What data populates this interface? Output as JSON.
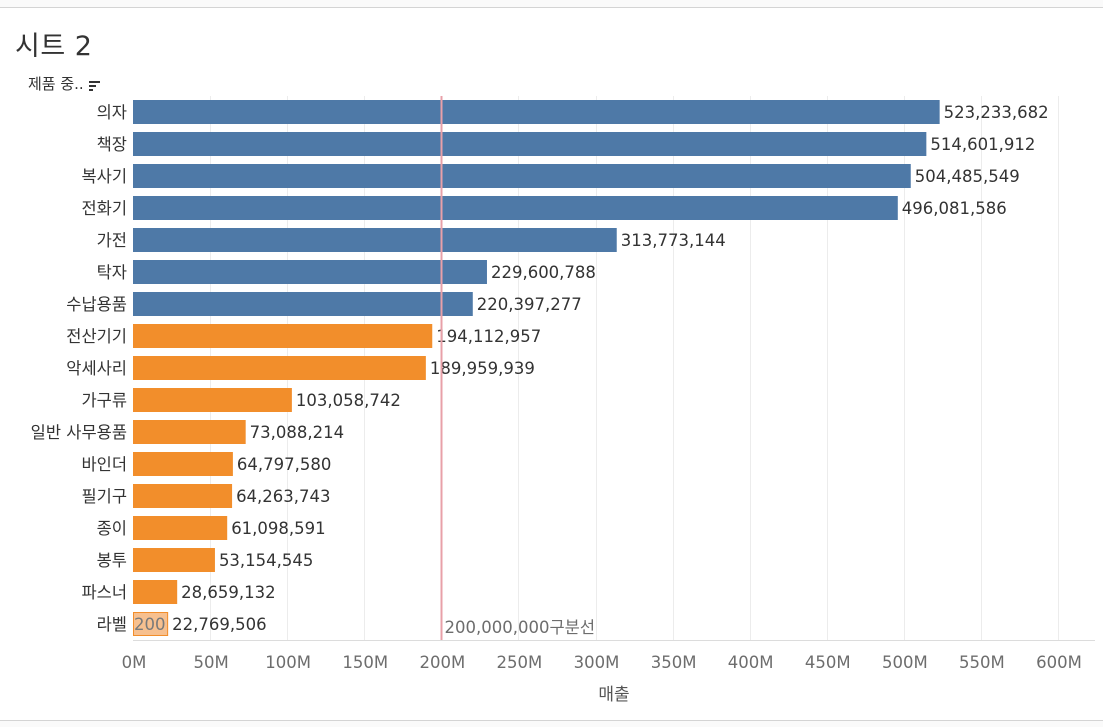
{
  "sheet_title": "시트 2",
  "row_header": "제품 중..",
  "reference_line": {
    "value": 200000000,
    "label": "200,000,000구분선",
    "color": "#e8a0a8"
  },
  "colors": {
    "above": "#4e79a7",
    "below": "#f28e2b",
    "highlight": "#f7c08f"
  },
  "chart_data": {
    "type": "bar",
    "orientation": "horizontal",
    "title": "시트 2",
    "xlabel": "매출",
    "ylabel": "제품 중..",
    "xlim": [
      0,
      600000000
    ],
    "x_ticks": [
      0,
      50000000,
      100000000,
      150000000,
      200000000,
      250000000,
      300000000,
      350000000,
      400000000,
      450000000,
      500000000,
      550000000,
      600000000
    ],
    "x_tick_labels": [
      "0M",
      "50M",
      "100M",
      "150M",
      "200M",
      "250M",
      "300M",
      "350M",
      "400M",
      "450M",
      "500M",
      "550M",
      "600M"
    ],
    "categories": [
      "의자",
      "책장",
      "복사기",
      "전화기",
      "가전",
      "탁자",
      "수납용품",
      "전산기기",
      "악세사리",
      "가구류",
      "일반 사무용품",
      "바인더",
      "필기구",
      "종이",
      "봉투",
      "파스너",
      "라벨"
    ],
    "values": [
      523233682,
      514601912,
      504485549,
      496081586,
      313773144,
      229600788,
      220397277,
      194112957,
      189959939,
      103058742,
      73088214,
      64797580,
      64263743,
      61098591,
      53154545,
      28659132,
      22769506
    ],
    "value_labels": [
      "523,233,682",
      "514,601,912",
      "504,485,549",
      "496,081,586",
      "313,773,144",
      "229,600,788",
      "220,397,277",
      "194,112,957",
      "189,959,939",
      "103,058,742",
      "73,088,214",
      "64,797,580",
      "64,263,743",
      "61,098,591",
      "53,154,545",
      "28,659,132",
      "22,769,506"
    ],
    "highlight": {
      "category": "라벨",
      "label": "200"
    },
    "grid": true
  }
}
